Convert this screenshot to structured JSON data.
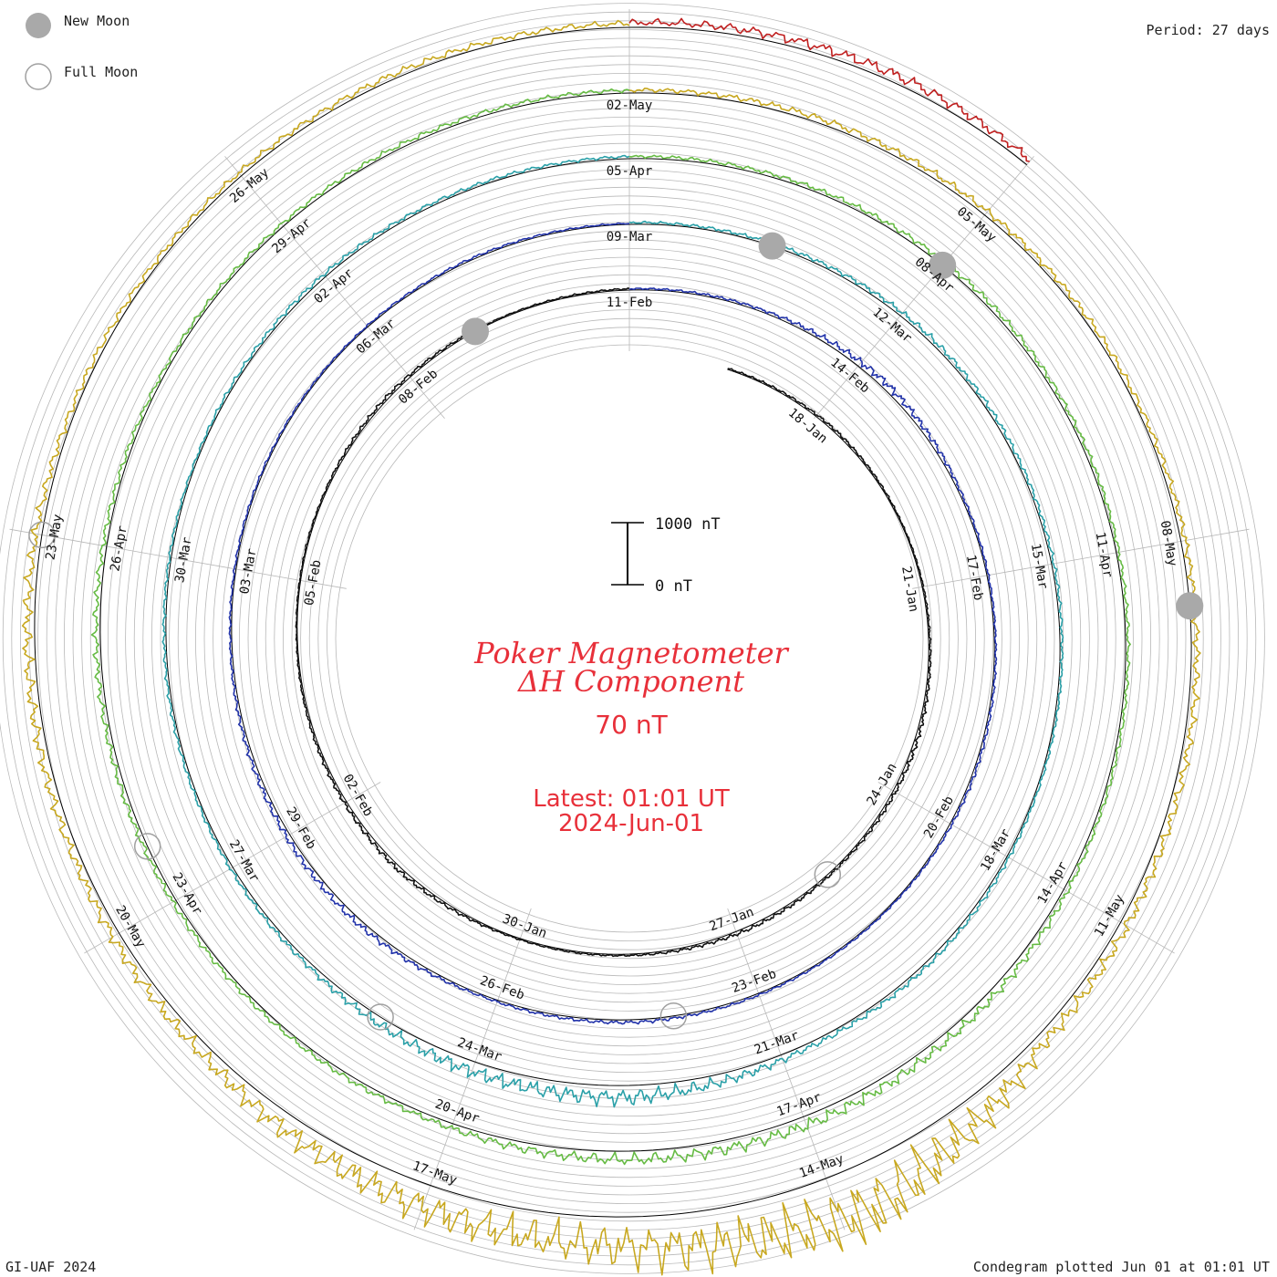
{
  "legend": {
    "new_moon_label": "New Moon",
    "full_moon_label": "Full Moon"
  },
  "period_label": "Period: 27 days",
  "credit": "GI-UAF 2024",
  "plotted_note": "Condegram plotted Jun 01 at 01:01 UT",
  "center": {
    "title_line1": "Poker Magnetometer",
    "title_line2": "ΔH Component",
    "baseline_label": "70 nT",
    "latest_line1": "Latest: 01:01 UT",
    "latest_line2": "2024-Jun-01",
    "scale_top_label": "1000 nT",
    "scale_bottom_label": "0 nT"
  },
  "colors": {
    "title": "#e8303a",
    "grid": "#b8b8b8",
    "baseline": "#000000",
    "moon_new": "#a9a9a9",
    "moon_full_stroke": "#a0a0a0"
  },
  "chart_data": {
    "type": "line",
    "title": "Poker Magnetometer ΔH Component",
    "projection": "spiral condegram (one turn per 27-day period)",
    "units": "nT",
    "baseline_nT": 70,
    "scale_bar_nT": [
      0,
      1000
    ],
    "start_date": "2024-01-15",
    "end_date": "2024-06-01 01:01 UT",
    "period_days": 27,
    "series": [
      {
        "period": "Jan 15 - Feb 10",
        "color": "#111111",
        "disturbance_nT": [
          30,
          60,
          110,
          45,
          70,
          160,
          90,
          150,
          70,
          60,
          180,
          110,
          40,
          60,
          130,
          50,
          70
        ]
      },
      {
        "period": "Feb 11 - Mar 08",
        "color": "#2233aa",
        "disturbance_nT": [
          60,
          110,
          300,
          90,
          70,
          120,
          60,
          80,
          140,
          90,
          250,
          180,
          80,
          70,
          60,
          90,
          50
        ]
      },
      {
        "period": "Mar 09 - Apr 04",
        "color": "#2aa0a8",
        "disturbance_nT": [
          90,
          140,
          210,
          140,
          110,
          90,
          180,
          220,
          650,
          520,
          180,
          120,
          110,
          90,
          160,
          130,
          110
        ]
      },
      {
        "period": "Apr 05 - May 01",
        "color": "#66bb44",
        "disturbance_nT": [
          110,
          170,
          220,
          160,
          130,
          150,
          330,
          480,
          460,
          230,
          180,
          200,
          240,
          160,
          140,
          180,
          150
        ]
      },
      {
        "period": "May 02 - May 28",
        "color": "#c8a820",
        "disturbance_nT": [
          150,
          260,
          240,
          190,
          280,
          330,
          500,
          2500,
          1600,
          1200,
          520,
          330,
          420,
          230,
          190,
          250,
          210
        ]
      },
      {
        "period": "May 29 - Jun 01",
        "color": "#c02020",
        "disturbance_nT": [
          240,
          360,
          420,
          300
        ]
      }
    ],
    "date_labels": [
      {
        "label": "18-Jan",
        "day": 3
      },
      {
        "label": "21-Jan",
        "day": 6
      },
      {
        "label": "24-Jan",
        "day": 9
      },
      {
        "label": "27-Jan",
        "day": 12
      },
      {
        "label": "30-Jan",
        "day": 15
      },
      {
        "label": "02-Feb",
        "day": 18
      },
      {
        "label": "05-Feb",
        "day": 21
      },
      {
        "label": "08-Feb",
        "day": 24
      },
      {
        "label": "11-Feb",
        "day": 27
      },
      {
        "label": "14-Feb",
        "day": 30
      },
      {
        "label": "17-Feb",
        "day": 33
      },
      {
        "label": "20-Feb",
        "day": 36
      },
      {
        "label": "23-Feb",
        "day": 39
      },
      {
        "label": "26-Feb",
        "day": 42
      },
      {
        "label": "29-Feb",
        "day": 45
      },
      {
        "label": "03-Mar",
        "day": 48
      },
      {
        "label": "06-Mar",
        "day": 51
      },
      {
        "label": "09-Mar",
        "day": 54
      },
      {
        "label": "12-Mar",
        "day": 57
      },
      {
        "label": "15-Mar",
        "day": 60
      },
      {
        "label": "18-Mar",
        "day": 63
      },
      {
        "label": "21-Mar",
        "day": 66
      },
      {
        "label": "24-Mar",
        "day": 69
      },
      {
        "label": "27-Mar",
        "day": 72
      },
      {
        "label": "30-Mar",
        "day": 75
      },
      {
        "label": "02-Apr",
        "day": 78
      },
      {
        "label": "05-Apr",
        "day": 81
      },
      {
        "label": "08-Apr",
        "day": 84
      },
      {
        "label": "11-Apr",
        "day": 87
      },
      {
        "label": "14-Apr",
        "day": 90
      },
      {
        "label": "17-Apr",
        "day": 93
      },
      {
        "label": "20-Apr",
        "day": 96
      },
      {
        "label": "23-Apr",
        "day": 99
      },
      {
        "label": "26-Apr",
        "day": 102
      },
      {
        "label": "29-Apr",
        "day": 105
      },
      {
        "label": "02-May",
        "day": 108
      },
      {
        "label": "05-May",
        "day": 111
      },
      {
        "label": "08-May",
        "day": 114
      },
      {
        "label": "11-May",
        "day": 117
      },
      {
        "label": "14-May",
        "day": 120
      },
      {
        "label": "17-May",
        "day": 123
      },
      {
        "label": "20-May",
        "day": 126
      },
      {
        "label": "23-May",
        "day": 129
      },
      {
        "label": "26-May",
        "day": 132
      }
    ],
    "new_moon_days": [
      25,
      55.5,
      84,
      114.5
    ],
    "full_moon_days": [
      10.5,
      40,
      70,
      99.5,
      129
    ],
    "legend": [
      "New Moon",
      "Full Moon"
    ],
    "grid": true
  }
}
